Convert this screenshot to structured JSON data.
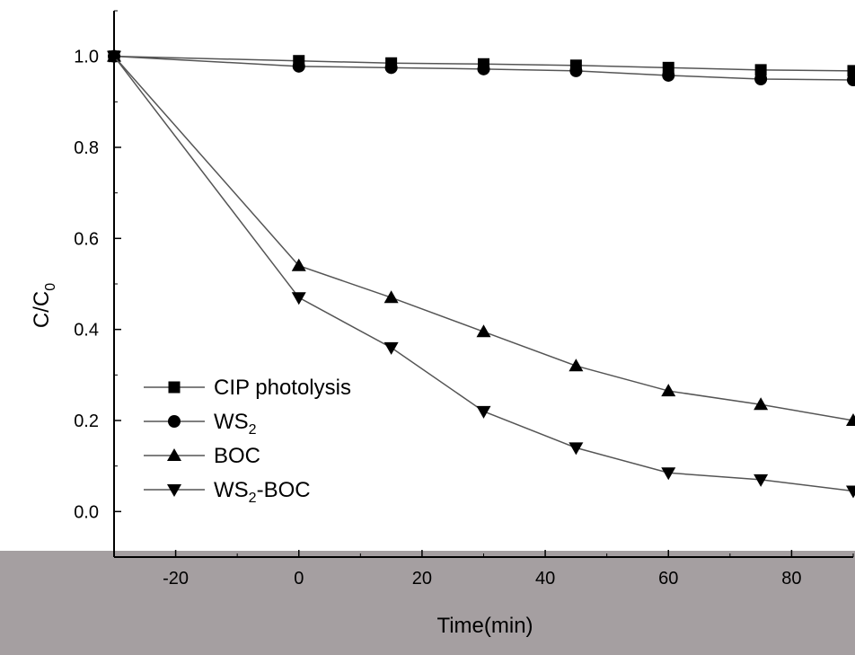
{
  "chart_data": {
    "type": "line",
    "xlabel": "Time(min)",
    "ylabel_main": "C/C",
    "ylabel_sub": "0",
    "xlim": [
      -30,
      90
    ],
    "ylim": [
      -0.1,
      1.1
    ],
    "x_ticks": [
      -20,
      0,
      20,
      40,
      60,
      80
    ],
    "y_ticks": [
      "0.0",
      "0.2",
      "0.4",
      "0.6",
      "0.8",
      "1.0"
    ],
    "grid": false,
    "legend_position": "bottom-left",
    "x": [
      -30,
      0,
      15,
      30,
      45,
      60,
      75,
      90
    ],
    "series": [
      {
        "name": "CIP photolysis",
        "name_main": "CIP photolysis",
        "name_sub": "",
        "name_tail": "",
        "marker": "square",
        "values": [
          1.0,
          0.99,
          0.985,
          0.983,
          0.98,
          0.975,
          0.97,
          0.968
        ]
      },
      {
        "name": "WS2",
        "name_main": "WS",
        "name_sub": "2",
        "name_tail": "",
        "marker": "circle",
        "values": [
          1.0,
          0.978,
          0.975,
          0.972,
          0.968,
          0.958,
          0.95,
          0.948
        ]
      },
      {
        "name": "BOC",
        "name_main": "BOC",
        "name_sub": "",
        "name_tail": "",
        "marker": "triangle-up",
        "values": [
          1.0,
          0.54,
          0.47,
          0.395,
          0.32,
          0.265,
          0.235,
          0.2
        ]
      },
      {
        "name": "WS2-BOC",
        "name_main": "WS",
        "name_sub": "2",
        "name_tail": "-BOC",
        "marker": "triangle-down",
        "values": [
          1.0,
          0.47,
          0.36,
          0.22,
          0.14,
          0.085,
          0.07,
          0.045
        ]
      }
    ],
    "colors": {
      "line": "#555555",
      "marker": "#000000",
      "band": "#a59fa1"
    }
  }
}
